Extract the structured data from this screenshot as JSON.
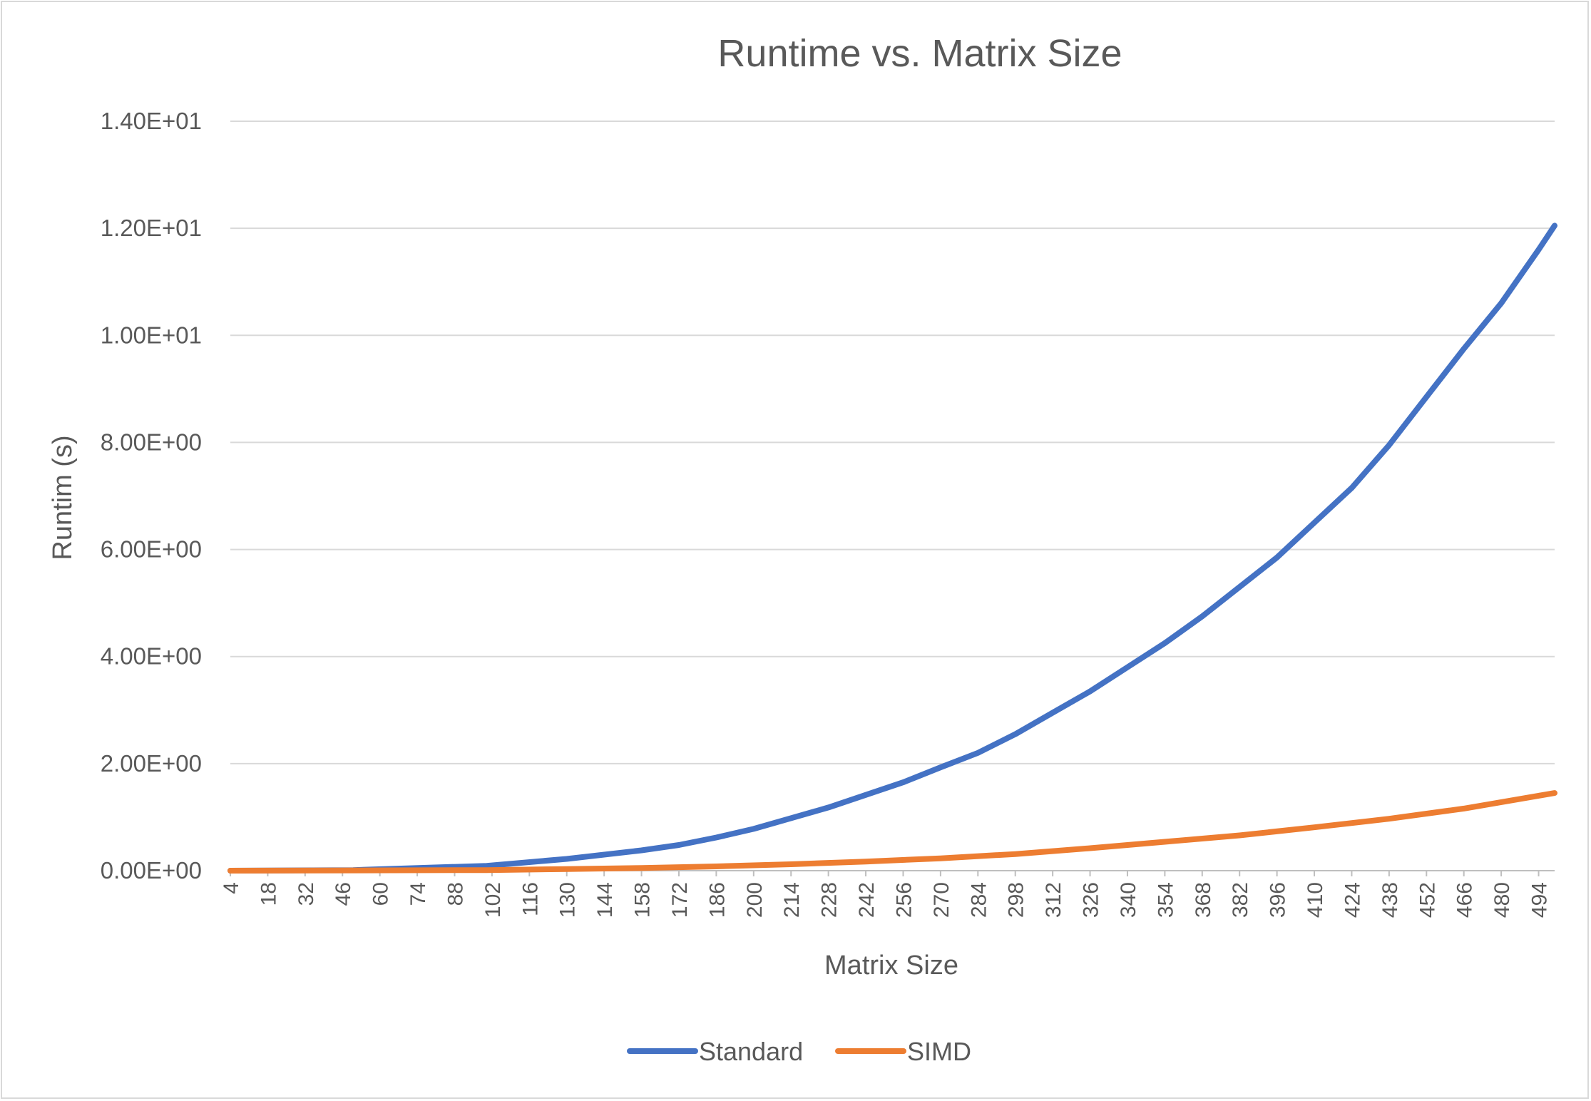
{
  "chart_data": {
    "type": "line",
    "title": "Runtime vs. Matrix Size",
    "xlabel": "Matrix Size",
    "ylabel": "Runtim (s)",
    "ylim": [
      0,
      14
    ],
    "xlim": [
      4,
      500
    ],
    "y_ticks": [
      "0.00E+00",
      "2.00E+00",
      "4.00E+00",
      "6.00E+00",
      "8.00E+00",
      "1.00E+01",
      "1.20E+01",
      "1.40E+01"
    ],
    "x_tick_labels": [
      "4",
      "18",
      "32",
      "46",
      "60",
      "74",
      "88",
      "102",
      "116",
      "130",
      "144",
      "158",
      "172",
      "186",
      "200",
      "214",
      "228",
      "242",
      "256",
      "270",
      "284",
      "298",
      "312",
      "326",
      "340",
      "354",
      "368",
      "382",
      "396",
      "410",
      "424",
      "438",
      "452",
      "466",
      "480",
      "494"
    ],
    "grid": true,
    "legend": "bottom",
    "series": [
      {
        "name": "Standard",
        "color": "#4472C4",
        "x": [
          4,
          50,
          100,
          130,
          158,
          172,
          186,
          200,
          228,
          256,
          270,
          284,
          298,
          312,
          326,
          340,
          354,
          368,
          382,
          396,
          410,
          424,
          438,
          452,
          466,
          480,
          494,
          500
        ],
        "values": [
          0,
          0.01,
          0.09,
          0.22,
          0.38,
          0.48,
          0.62,
          0.78,
          1.18,
          1.65,
          1.93,
          2.2,
          2.55,
          2.95,
          3.35,
          3.8,
          4.25,
          4.75,
          5.3,
          5.85,
          6.5,
          7.15,
          7.95,
          8.85,
          9.75,
          10.6,
          11.6,
          12.05
        ]
      },
      {
        "name": "SIMD",
        "color": "#ED7D31",
        "x": [
          4,
          100,
          130,
          158,
          186,
          214,
          242,
          270,
          298,
          326,
          354,
          382,
          410,
          438,
          466,
          494,
          500
        ],
        "values": [
          0,
          0.01,
          0.03,
          0.05,
          0.08,
          0.12,
          0.17,
          0.23,
          0.31,
          0.42,
          0.54,
          0.66,
          0.81,
          0.97,
          1.16,
          1.4,
          1.45
        ]
      }
    ]
  }
}
